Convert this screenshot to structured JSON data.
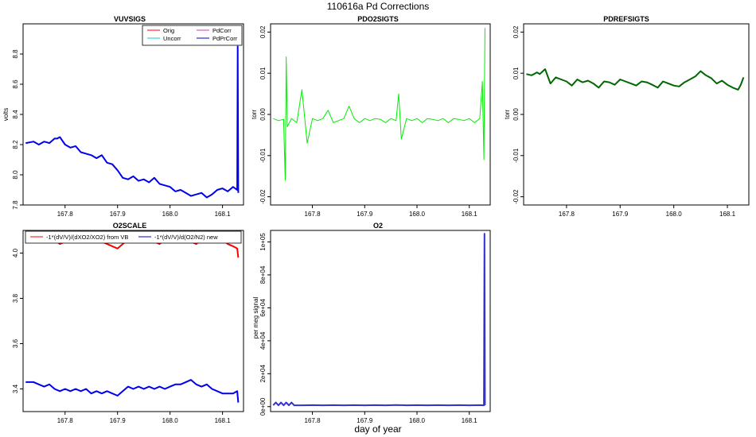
{
  "figure": {
    "title": "110616a   Pd Corrections",
    "xlabel": "day of year"
  },
  "chart_data": [
    {
      "type": "line",
      "id": "p1",
      "title": "VUVSIGS",
      "xlabel": "",
      "ylabel": "volts",
      "xlim": [
        167.72,
        168.14
      ],
      "ylim": [
        7.8,
        9.0
      ],
      "xticks": [
        167.8,
        167.9,
        168.0,
        168.1
      ],
      "xtick_labels": [
        "167.8",
        "167.9",
        "168.0",
        "168.1"
      ],
      "yticks": [
        7.8,
        8.0,
        8.2,
        8.4,
        8.6,
        8.8
      ],
      "ytick_labels": [
        "7.8",
        "8.0",
        "8.2",
        "8.4",
        "8.6",
        "8.8"
      ],
      "legend": {
        "position": "top-right",
        "entries": [
          {
            "name": "Orig",
            "color": "#ff0000"
          },
          {
            "name": "PdCorr",
            "color": "#cc33cc"
          },
          {
            "name": "Uncorr",
            "color": "#00cccc"
          },
          {
            "name": "PdPrCorr",
            "color": "#0000cc"
          }
        ]
      },
      "series": [
        {
          "name": "PdPrCorr",
          "color": "#0000ee",
          "x": [
            167.725,
            167.74,
            167.75,
            167.76,
            167.77,
            167.78,
            167.785,
            167.79,
            167.8,
            167.81,
            167.82,
            167.83,
            167.84,
            167.85,
            167.86,
            167.87,
            167.88,
            167.89,
            167.9,
            167.91,
            167.92,
            167.93,
            167.94,
            167.95,
            167.96,
            167.97,
            167.98,
            167.99,
            168.0,
            168.01,
            168.02,
            168.03,
            168.04,
            168.05,
            168.06,
            168.07,
            168.08,
            168.09,
            168.1,
            168.11,
            168.12,
            168.128,
            168.129,
            168.13
          ],
          "y": [
            8.21,
            8.22,
            8.2,
            8.22,
            8.21,
            8.24,
            8.24,
            8.25,
            8.2,
            8.18,
            8.19,
            8.15,
            8.14,
            8.13,
            8.11,
            8.13,
            8.08,
            8.07,
            8.03,
            7.98,
            7.97,
            7.99,
            7.96,
            7.97,
            7.95,
            7.98,
            7.94,
            7.93,
            7.92,
            7.89,
            7.9,
            7.88,
            7.86,
            7.87,
            7.88,
            7.85,
            7.87,
            7.9,
            7.91,
            7.89,
            7.92,
            7.9,
            8.85,
            7.88
          ]
        }
      ]
    },
    {
      "type": "line",
      "id": "p2",
      "title": "PDO2SIGTS",
      "ylabel": "torr",
      "xlim": [
        167.72,
        168.14
      ],
      "ylim": [
        -0.022,
        0.022
      ],
      "xticks": [
        167.8,
        167.9,
        168.0,
        168.1
      ],
      "xtick_labels": [
        "167.8",
        "167.9",
        "168.0",
        "168.1"
      ],
      "yticks": [
        -0.02,
        -0.01,
        0.0,
        0.01,
        0.02
      ],
      "ytick_labels": [
        "-0.02",
        "-0.01",
        "0.00",
        "0.01",
        "0.02"
      ],
      "series": [
        {
          "name": "PDO2SIGTS",
          "color": "#00ee00",
          "x": [
            167.725,
            167.735,
            167.745,
            167.748,
            167.75,
            167.752,
            167.76,
            167.77,
            167.78,
            167.79,
            167.8,
            167.81,
            167.82,
            167.83,
            167.84,
            167.85,
            167.86,
            167.87,
            167.88,
            167.89,
            167.9,
            167.91,
            167.92,
            167.93,
            167.94,
            167.95,
            167.96,
            167.965,
            167.97,
            167.98,
            167.99,
            168.0,
            168.01,
            168.02,
            168.03,
            168.04,
            168.05,
            168.06,
            168.07,
            168.08,
            168.09,
            168.1,
            168.11,
            168.12,
            168.125,
            168.128,
            168.13
          ],
          "y": [
            -0.001,
            -0.0015,
            -0.0012,
            -0.016,
            0.014,
            -0.003,
            -0.001,
            -0.002,
            0.006,
            -0.007,
            -0.001,
            -0.0015,
            -0.001,
            0.001,
            -0.002,
            -0.0015,
            -0.001,
            0.002,
            -0.001,
            -0.002,
            -0.001,
            -0.0015,
            -0.001,
            -0.0012,
            -0.002,
            -0.001,
            -0.0015,
            0.005,
            -0.006,
            -0.001,
            -0.0015,
            -0.001,
            -0.002,
            -0.001,
            -0.0012,
            -0.0015,
            -0.001,
            -0.002,
            -0.001,
            -0.0012,
            -0.0015,
            -0.001,
            -0.002,
            -0.001,
            0.008,
            -0.011,
            0.021
          ]
        }
      ]
    },
    {
      "type": "line",
      "id": "p3",
      "title": "PDREFSIGTS",
      "ylabel": "torr",
      "xlim": [
        167.72,
        168.14
      ],
      "ylim": [
        -0.022,
        0.022
      ],
      "xticks": [
        167.8,
        167.9,
        168.0,
        168.1
      ],
      "xtick_labels": [
        "167.8",
        "167.9",
        "168.0",
        "168.1"
      ],
      "yticks": [
        -0.02,
        -0.01,
        0.0,
        0.01,
        0.02
      ],
      "ytick_labels": [
        "-0.02",
        "-0.01",
        "0.00",
        "0.01",
        "0.02"
      ],
      "series": [
        {
          "name": "PDREFSIGTS",
          "color": "#006600",
          "x": [
            167.725,
            167.735,
            167.745,
            167.75,
            167.76,
            167.77,
            167.78,
            167.79,
            167.8,
            167.81,
            167.82,
            167.83,
            167.84,
            167.85,
            167.86,
            167.87,
            167.88,
            167.89,
            167.9,
            167.91,
            167.92,
            167.93,
            167.94,
            167.95,
            167.96,
            167.97,
            167.98,
            167.99,
            168.0,
            168.01,
            168.02,
            168.03,
            168.04,
            168.05,
            168.06,
            168.07,
            168.08,
            168.09,
            168.1,
            168.11,
            168.12,
            168.125,
            168.13
          ],
          "y": [
            0.0098,
            0.0095,
            0.0102,
            0.0098,
            0.011,
            0.0075,
            0.009,
            0.0085,
            0.008,
            0.007,
            0.0085,
            0.0078,
            0.0082,
            0.0075,
            0.0065,
            0.008,
            0.0078,
            0.0072,
            0.0085,
            0.008,
            0.0075,
            0.007,
            0.008,
            0.0078,
            0.0072,
            0.0065,
            0.008,
            0.0075,
            0.007,
            0.0068,
            0.0078,
            0.0085,
            0.0092,
            0.0105,
            0.0095,
            0.0088,
            0.0075,
            0.0082,
            0.0072,
            0.0065,
            0.006,
            0.0072,
            0.009
          ]
        }
      ]
    },
    {
      "type": "line",
      "id": "p4",
      "title": "O2SCALE",
      "ylabel": "",
      "xlim": [
        167.72,
        168.14
      ],
      "ylim": [
        3.3,
        4.1
      ],
      "xticks": [
        167.8,
        167.9,
        168.0,
        168.1
      ],
      "xtick_labels": [
        "167.8",
        "167.9",
        "168.0",
        "168.1"
      ],
      "yticks": [
        3.4,
        3.6,
        3.8,
        4.0
      ],
      "ytick_labels": [
        "3.4",
        "3.6",
        "3.8",
        "4.0"
      ],
      "legend": {
        "position": "top",
        "entries": [
          {
            "name": "-1*(dV/V)/(dXO2/XO2) from VB",
            "color": "#ff0000"
          },
          {
            "name": "-1*(dV/V)/d(O2/N2) new",
            "color": "#0000cc"
          }
        ]
      },
      "series": [
        {
          "name": "-1*(dV/V)/(dXO2/XO2) from VB",
          "color": "#ff0000",
          "x": [
            167.725,
            167.74,
            167.75,
            167.76,
            167.77,
            167.78,
            167.79,
            167.8,
            167.81,
            167.82,
            167.83,
            167.84,
            167.85,
            167.86,
            167.87,
            167.88,
            167.89,
            167.9,
            167.91,
            167.92,
            167.93,
            167.94,
            167.95,
            167.96,
            167.97,
            167.98,
            167.99,
            168.0,
            168.01,
            168.02,
            168.03,
            168.04,
            168.05,
            168.06,
            168.07,
            168.08,
            168.09,
            168.1,
            168.11,
            168.12,
            168.128,
            168.13
          ],
          "y": [
            4.07,
            4.06,
            4.07,
            4.06,
            4.05,
            4.06,
            4.04,
            4.05,
            4.06,
            4.05,
            4.06,
            4.05,
            4.06,
            4.06,
            4.05,
            4.04,
            4.03,
            4.02,
            4.04,
            4.06,
            4.05,
            4.06,
            4.05,
            4.06,
            4.05,
            4.04,
            4.06,
            4.05,
            4.06,
            4.05,
            4.06,
            4.05,
            4.04,
            4.06,
            4.05,
            4.07,
            4.05,
            4.06,
            4.04,
            4.03,
            4.02,
            3.98
          ]
        },
        {
          "name": "-1*(dV/V)/d(O2/N2) new",
          "color": "#0000ee",
          "x": [
            167.725,
            167.74,
            167.75,
            167.76,
            167.77,
            167.78,
            167.79,
            167.8,
            167.81,
            167.82,
            167.83,
            167.84,
            167.85,
            167.86,
            167.87,
            167.88,
            167.89,
            167.9,
            167.91,
            167.92,
            167.93,
            167.94,
            167.95,
            167.96,
            167.97,
            167.98,
            167.99,
            168.0,
            168.01,
            168.02,
            168.03,
            168.04,
            168.05,
            168.06,
            168.07,
            168.08,
            168.09,
            168.1,
            168.11,
            168.12,
            168.128,
            168.13
          ],
          "y": [
            3.43,
            3.43,
            3.42,
            3.41,
            3.42,
            3.4,
            3.39,
            3.4,
            3.39,
            3.4,
            3.39,
            3.4,
            3.38,
            3.39,
            3.38,
            3.39,
            3.38,
            3.37,
            3.39,
            3.41,
            3.4,
            3.41,
            3.4,
            3.41,
            3.4,
            3.41,
            3.4,
            3.41,
            3.42,
            3.42,
            3.43,
            3.44,
            3.42,
            3.41,
            3.42,
            3.4,
            3.39,
            3.38,
            3.38,
            3.38,
            3.39,
            3.34
          ]
        }
      ]
    },
    {
      "type": "line",
      "id": "p5",
      "title": "O2",
      "ylabel": "per meg signal",
      "xlim": [
        167.72,
        168.14
      ],
      "ylim": [
        -3000,
        107000
      ],
      "xticks": [
        167.8,
        167.9,
        168.0,
        168.1
      ],
      "xtick_labels": [
        "167.8",
        "167.9",
        "168.0",
        "168.1"
      ],
      "yticks": [
        0,
        20000,
        40000,
        60000,
        80000,
        100000
      ],
      "ytick_labels": [
        "0e+00",
        "2e+04",
        "4e+04",
        "6e+04",
        "8e+04",
        "1e+05"
      ],
      "series": [
        {
          "name": "O2",
          "color": "#3333cc",
          "x": [
            167.725,
            167.73,
            167.735,
            167.74,
            167.745,
            167.75,
            167.755,
            167.76,
            167.765,
            167.78,
            167.8,
            167.82,
            167.84,
            167.86,
            167.88,
            167.9,
            167.92,
            167.94,
            167.96,
            167.98,
            168.0,
            168.02,
            168.04,
            168.06,
            168.08,
            168.1,
            168.12,
            168.128,
            168.129,
            168.13
          ],
          "y": [
            800,
            2500,
            800,
            2500,
            800,
            2500,
            800,
            2500,
            800,
            800,
            900,
            800,
            900,
            800,
            900,
            800,
            900,
            800,
            1000,
            800,
            900,
            800,
            900,
            800,
            900,
            800,
            900,
            800,
            105000,
            800
          ]
        }
      ]
    }
  ]
}
